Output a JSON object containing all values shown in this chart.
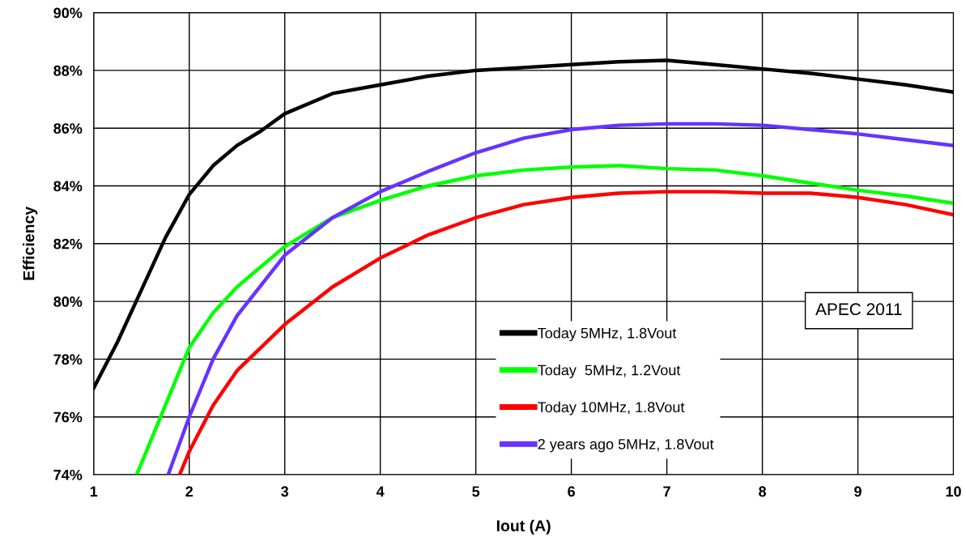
{
  "chart_data": {
    "type": "line",
    "xlabel": "Iout (A)",
    "ylabel": "Efficiency",
    "xlim": [
      1,
      10
    ],
    "xticks": [
      1,
      2,
      3,
      4,
      5,
      6,
      7,
      8,
      9,
      10
    ],
    "ylim": [
      74,
      90
    ],
    "yticks": [
      {
        "value": 74,
        "label": "74%"
      },
      {
        "value": 76,
        "label": "76%"
      },
      {
        "value": 78,
        "label": "78%"
      },
      {
        "value": 80,
        "label": "80%"
      },
      {
        "value": 82,
        "label": "82%"
      },
      {
        "value": 84,
        "label": "84%"
      },
      {
        "value": 86,
        "label": "86%"
      },
      {
        "value": 88,
        "label": "88%"
      },
      {
        "value": 90,
        "label": "90%"
      }
    ],
    "grid": true,
    "legend": "bottom",
    "marker": "none",
    "line_style": "solid",
    "annotations": [
      "APEC 2011"
    ],
    "series": [
      {
        "name": "Today 5MHz, 1.8Vout",
        "color": "#000000",
        "x": [
          1,
          1.25,
          1.5,
          1.75,
          2,
          2.25,
          2.5,
          2.75,
          3,
          3.5,
          4,
          4.5,
          5,
          5.5,
          6,
          6.5,
          7,
          7.5,
          8,
          8.5,
          9,
          9.5,
          10
        ],
        "values": [
          77.0,
          78.6,
          80.4,
          82.2,
          83.7,
          84.7,
          85.4,
          85.9,
          86.5,
          87.2,
          87.5,
          87.8,
          88.0,
          88.1,
          88.2,
          88.3,
          88.35,
          88.2,
          88.05,
          87.9,
          87.7,
          87.5,
          87.25
        ]
      },
      {
        "name": "Today  5MHz, 1.2Vout",
        "color": "#00ff00",
        "x": [
          1.45,
          1.75,
          2,
          2.25,
          2.5,
          3,
          3.5,
          4,
          4.5,
          5,
          5.5,
          6,
          6.5,
          7,
          7.5,
          8,
          8.5,
          9,
          9.5,
          10
        ],
        "values": [
          74.0,
          76.4,
          78.4,
          79.6,
          80.5,
          81.9,
          82.9,
          83.5,
          84.0,
          84.35,
          84.55,
          84.65,
          84.7,
          84.6,
          84.55,
          84.35,
          84.1,
          83.85,
          83.65,
          83.4
        ]
      },
      {
        "name": "Today 10MHz, 1.8Vout",
        "color": "#ff0000",
        "x": [
          1.9,
          2,
          2.25,
          2.5,
          3,
          3.5,
          4,
          4.5,
          5,
          5.5,
          6,
          6.5,
          7,
          7.5,
          8,
          8.5,
          9,
          9.5,
          10
        ],
        "values": [
          74.0,
          74.8,
          76.4,
          77.6,
          79.2,
          80.5,
          81.5,
          82.3,
          82.9,
          83.35,
          83.6,
          83.75,
          83.8,
          83.8,
          83.75,
          83.75,
          83.6,
          83.35,
          83.0
        ]
      },
      {
        "name": "2 years ago 5MHz, 1.8Vout",
        "color": "#6633ff",
        "x": [
          1.78,
          2,
          2.25,
          2.5,
          3,
          3.5,
          4,
          4.5,
          5,
          5.5,
          6,
          6.5,
          7,
          7.5,
          8,
          8.5,
          9,
          9.5,
          10
        ],
        "values": [
          74.0,
          76.0,
          78.0,
          79.5,
          81.6,
          82.9,
          83.8,
          84.5,
          85.15,
          85.65,
          85.95,
          86.1,
          86.15,
          86.15,
          86.1,
          85.95,
          85.8,
          85.6,
          85.4
        ]
      }
    ]
  }
}
